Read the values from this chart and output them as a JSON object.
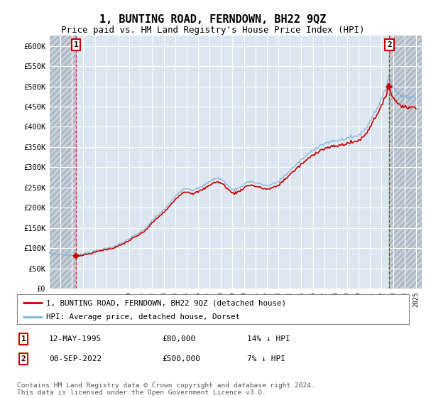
{
  "title": "1, BUNTING ROAD, FERNDOWN, BH22 9QZ",
  "subtitle": "Price paid vs. HM Land Registry's House Price Index (HPI)",
  "ylim": [
    0,
    625000
  ],
  "yticks": [
    0,
    50000,
    100000,
    150000,
    200000,
    250000,
    300000,
    350000,
    400000,
    450000,
    500000,
    550000,
    600000
  ],
  "ytick_labels": [
    "£0",
    "£50K",
    "£100K",
    "£150K",
    "£200K",
    "£250K",
    "£300K",
    "£350K",
    "£400K",
    "£450K",
    "£500K",
    "£550K",
    "£600K"
  ],
  "xlim_start": 1993.0,
  "xlim_end": 2025.5,
  "background_color": "#ffffff",
  "plot_bg_color": "#dce6f1",
  "grid_color": "#ffffff",
  "hpi_line_color": "#7ab0d4",
  "price_line_color": "#cc0000",
  "sale1_x": 1995.36,
  "sale1_y": 80000,
  "sale2_x": 2022.68,
  "sale2_y": 500000,
  "sale1_label": "1",
  "sale2_label": "2",
  "legend_line1": "1, BUNTING ROAD, FERNDOWN, BH22 9QZ (detached house)",
  "legend_line2": "HPI: Average price, detached house, Dorset",
  "table_row1": [
    "1",
    "12-MAY-1995",
    "£80,000",
    "14% ↓ HPI"
  ],
  "table_row2": [
    "2",
    "08-SEP-2022",
    "£500,000",
    "7% ↓ HPI"
  ],
  "footer": "Contains HM Land Registry data © Crown copyright and database right 2024.\nThis data is licensed under the Open Government Licence v3.0.",
  "title_fontsize": 11,
  "subtitle_fontsize": 9,
  "hpi_anchors": [
    [
      1993.0,
      88000
    ],
    [
      1993.5,
      86000
    ],
    [
      1994.0,
      84000
    ],
    [
      1994.5,
      83000
    ],
    [
      1995.0,
      82000
    ],
    [
      1995.5,
      83500
    ],
    [
      1996.0,
      86000
    ],
    [
      1996.5,
      89000
    ],
    [
      1997.0,
      93000
    ],
    [
      1997.5,
      97000
    ],
    [
      1998.0,
      100000
    ],
    [
      1998.5,
      103000
    ],
    [
      1999.0,
      108000
    ],
    [
      1999.5,
      115000
    ],
    [
      2000.0,
      123000
    ],
    [
      2000.5,
      132000
    ],
    [
      2001.0,
      140000
    ],
    [
      2001.5,
      152000
    ],
    [
      2002.0,
      168000
    ],
    [
      2002.5,
      182000
    ],
    [
      2003.0,
      195000
    ],
    [
      2003.5,
      210000
    ],
    [
      2004.0,
      228000
    ],
    [
      2004.5,
      242000
    ],
    [
      2005.0,
      248000
    ],
    [
      2005.5,
      244000
    ],
    [
      2006.0,
      248000
    ],
    [
      2006.5,
      255000
    ],
    [
      2007.0,
      265000
    ],
    [
      2007.5,
      272000
    ],
    [
      2008.0,
      270000
    ],
    [
      2008.5,
      258000
    ],
    [
      2009.0,
      245000
    ],
    [
      2009.5,
      248000
    ],
    [
      2010.0,
      258000
    ],
    [
      2010.5,
      265000
    ],
    [
      2011.0,
      262000
    ],
    [
      2011.5,
      258000
    ],
    [
      2012.0,
      255000
    ],
    [
      2012.5,
      258000
    ],
    [
      2013.0,
      265000
    ],
    [
      2013.5,
      278000
    ],
    [
      2014.0,
      292000
    ],
    [
      2014.5,
      305000
    ],
    [
      2015.0,
      318000
    ],
    [
      2015.5,
      330000
    ],
    [
      2016.0,
      342000
    ],
    [
      2016.5,
      352000
    ],
    [
      2017.0,
      358000
    ],
    [
      2017.5,
      362000
    ],
    [
      2018.0,
      365000
    ],
    [
      2018.5,
      368000
    ],
    [
      2019.0,
      372000
    ],
    [
      2019.5,
      375000
    ],
    [
      2020.0,
      380000
    ],
    [
      2020.5,
      392000
    ],
    [
      2021.0,
      415000
    ],
    [
      2021.5,
      442000
    ],
    [
      2022.0,
      468000
    ],
    [
      2022.3,
      488000
    ],
    [
      2022.5,
      510000
    ],
    [
      2022.65,
      530000
    ],
    [
      2022.75,
      518000
    ],
    [
      2022.9,
      505000
    ],
    [
      2023.0,
      498000
    ],
    [
      2023.25,
      490000
    ],
    [
      2023.5,
      482000
    ],
    [
      2023.75,
      478000
    ],
    [
      2024.0,
      475000
    ],
    [
      2024.25,
      473000
    ],
    [
      2024.5,
      472000
    ],
    [
      2024.75,
      474000
    ],
    [
      2025.0,
      476000
    ]
  ]
}
